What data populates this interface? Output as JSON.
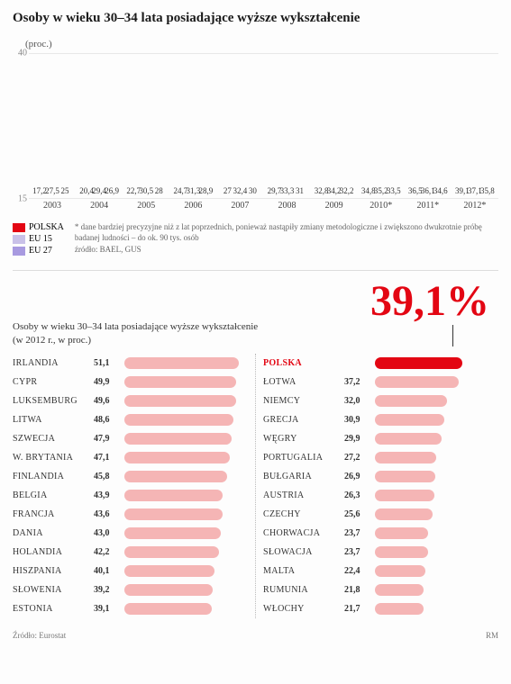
{
  "title": "Osoby w wieku 30–34 lata posiadające wyższe wykształcenie",
  "ylabel": "(proc.)",
  "chart": {
    "type": "bar",
    "ylim": [
      15,
      40
    ],
    "yticks": [
      15,
      40
    ],
    "series_colors": [
      "#e30613",
      "#c9c1e8",
      "#a89ae0"
    ],
    "series_labels": [
      "POLSKA",
      "EU 15",
      "EU 27"
    ],
    "categories": [
      "2003",
      "2004",
      "2005",
      "2006",
      "2007",
      "2008",
      "2009",
      "2010*",
      "2011*",
      "2012*"
    ],
    "data": [
      [
        17.2,
        27.5,
        25
      ],
      [
        20.4,
        29.4,
        26.9
      ],
      [
        22.7,
        30.5,
        28
      ],
      [
        24.7,
        31.3,
        28.9
      ],
      [
        27,
        32.4,
        30
      ],
      [
        29.7,
        33.3,
        31
      ],
      [
        32.8,
        34.2,
        32.2
      ],
      [
        34.8,
        35.2,
        33.5
      ],
      [
        36.5,
        36.1,
        34.6
      ],
      [
        39.1,
        37.1,
        35.8
      ]
    ],
    "note": "* dane bardziej precyzyjne niż z lat poprzednich, ponieważ nastąpiły zmiany metodologiczne i zwiększono dwukrotnie próbę badanej ludności – do ok. 90 tys. osób",
    "source_label": "źródło:",
    "source": "BAEL, GUS"
  },
  "subtitle": "Osoby w wieku 30–34 lata posiadające wyższe wykształcenie (w 2012 r., w proc.)",
  "bignum": "39,1%",
  "hbar": {
    "max": 55,
    "color": "#f5b5b5",
    "highlight_color": "#e30613",
    "left": [
      {
        "c": "IRLANDIA",
        "v": 51.1
      },
      {
        "c": "CYPR",
        "v": 49.9
      },
      {
        "c": "LUKSEMBURG",
        "v": 49.6
      },
      {
        "c": "LITWA",
        "v": 48.6
      },
      {
        "c": "SZWECJA",
        "v": 47.9
      },
      {
        "c": "W. BRYTANIA",
        "v": 47.1
      },
      {
        "c": "FINLANDIA",
        "v": 45.8
      },
      {
        "c": "BELGIA",
        "v": 43.9
      },
      {
        "c": "FRANCJA",
        "v": 43.6
      },
      {
        "c": "DANIA",
        "v": 43.0
      },
      {
        "c": "HOLANDIA",
        "v": 42.2
      },
      {
        "c": "HISZPANIA",
        "v": 40.1
      },
      {
        "c": "SŁOWENIA",
        "v": 39.2
      },
      {
        "c": "ESTONIA",
        "v": 39.1
      }
    ],
    "right": [
      {
        "c": "POLSKA",
        "v": 39.1,
        "hl": true,
        "hideval": true
      },
      {
        "c": "ŁOTWA",
        "v": 37.2
      },
      {
        "c": "NIEMCY",
        "v": 32.0
      },
      {
        "c": "GRECJA",
        "v": 30.9
      },
      {
        "c": "WĘGRY",
        "v": 29.9
      },
      {
        "c": "PORTUGALIA",
        "v": 27.2
      },
      {
        "c": "BUŁGARIA",
        "v": 26.9
      },
      {
        "c": "AUSTRIA",
        "v": 26.3
      },
      {
        "c": "CZECHY",
        "v": 25.6
      },
      {
        "c": "CHORWACJA",
        "v": 23.7
      },
      {
        "c": "SŁOWACJA",
        "v": 23.7
      },
      {
        "c": "MALTA",
        "v": 22.4
      },
      {
        "c": "RUMUNIA",
        "v": 21.8
      },
      {
        "c": "WŁOCHY",
        "v": 21.7
      }
    ]
  },
  "footer_source_label": "Źródło:",
  "footer_source": "Eurostat",
  "footer_credit": "RM"
}
